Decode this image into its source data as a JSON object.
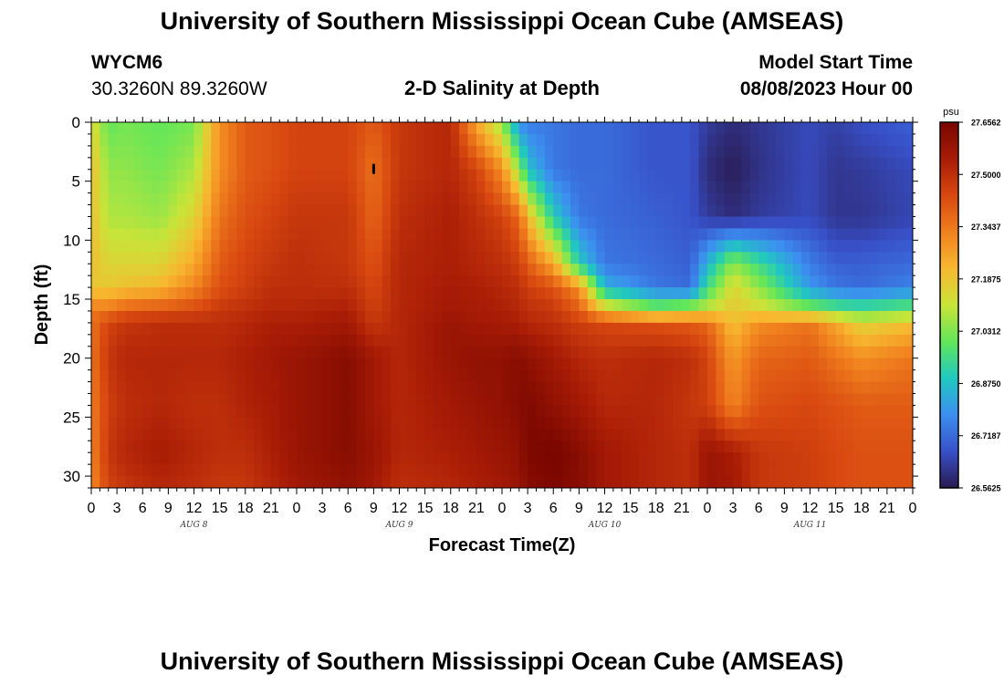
{
  "page": {
    "title": "University of Southern Mississippi Ocean Cube (AMSEAS)",
    "station_id": "WYCM6",
    "coords": "30.3260N  89.3260W",
    "plot_title": "2-D Salinity at Depth",
    "model_start_label": "Model Start Time",
    "model_start_value": "08/08/2023 Hour 00",
    "footer_title": "University of Southern Mississippi Ocean Cube (AMSEAS)"
  },
  "colors": {
    "ramp": [
      "#2a1a50",
      "#3850c8",
      "#3c8ef0",
      "#20c8c0",
      "#62e65a",
      "#c9e438",
      "#f8b830",
      "#f0801e",
      "#d84810",
      "#a81c06",
      "#780600"
    ]
  },
  "chart_data": {
    "type": "heatmap",
    "title": "2-D Salinity at Depth",
    "xlabel": "Forecast Time(Z)",
    "ylabel": "Depth (ft)",
    "x_range_hours": [
      0,
      96
    ],
    "y_range_ft": [
      0,
      31
    ],
    "y_ticks": [
      "0",
      "5",
      "10",
      "15",
      "20",
      "25",
      "30"
    ],
    "x_tick_labels": [
      "0",
      "3",
      "6",
      "9",
      "12",
      "15",
      "18",
      "21",
      "0",
      "3",
      "6",
      "9",
      "12",
      "15",
      "18",
      "21",
      "0",
      "3",
      "6",
      "9",
      "12",
      "15",
      "18",
      "21",
      "0",
      "3",
      "6",
      "9",
      "12",
      "15",
      "18",
      "21",
      "0"
    ],
    "day_labels": [
      "AUG 8",
      "AUG 9",
      "AUG 10",
      "AUG 11"
    ],
    "colorbar": {
      "unit": "psu",
      "min": 26.5625,
      "max": 27.6562,
      "tick_labels": [
        "27.6562",
        "27.5000",
        "27.3437",
        "27.1875",
        "27.0312",
        "26.8750",
        "26.7187",
        "26.5625"
      ]
    },
    "grid_depths_ft": [
      0,
      4,
      8,
      12,
      14,
      16,
      17,
      20,
      24,
      28,
      31
    ],
    "grid_hours": [
      0,
      2,
      4,
      8,
      12,
      15,
      18,
      21,
      24,
      30,
      33,
      36,
      42,
      45,
      48,
      50,
      51,
      54,
      57,
      60,
      66,
      70,
      72,
      75,
      78,
      84,
      87,
      90,
      96
    ],
    "values_rows": [
      [
        27.15,
        27.0,
        27.02,
        27.0,
        27.02,
        27.3,
        27.4,
        27.42,
        27.45,
        27.45,
        27.4,
        27.48,
        27.52,
        27.25,
        27.05,
        26.78,
        26.75,
        26.74,
        26.72,
        26.72,
        26.68,
        26.68,
        26.63,
        26.6,
        26.62,
        26.66,
        26.64,
        26.67,
        26.7
      ],
      [
        27.2,
        27.05,
        27.05,
        27.02,
        27.08,
        27.3,
        27.4,
        27.42,
        27.45,
        27.45,
        27.36,
        27.48,
        27.52,
        27.45,
        27.3,
        27.05,
        26.88,
        26.74,
        26.72,
        26.72,
        26.68,
        26.68,
        26.6,
        26.57,
        26.61,
        26.66,
        26.62,
        26.63,
        26.66
      ],
      [
        27.2,
        27.08,
        27.08,
        27.06,
        27.15,
        27.35,
        27.42,
        27.45,
        27.48,
        27.48,
        27.38,
        27.5,
        27.54,
        27.5,
        27.45,
        27.38,
        27.22,
        26.9,
        26.74,
        26.72,
        26.7,
        26.68,
        26.63,
        26.6,
        26.63,
        26.66,
        26.62,
        26.62,
        26.65
      ],
      [
        27.2,
        27.15,
        27.15,
        27.15,
        27.25,
        27.4,
        27.45,
        27.48,
        27.5,
        27.48,
        27.42,
        27.52,
        27.54,
        27.52,
        27.5,
        27.46,
        27.4,
        27.25,
        26.9,
        26.74,
        26.72,
        26.7,
        26.85,
        27.05,
        26.95,
        26.75,
        26.7,
        26.7,
        26.72
      ],
      [
        27.18,
        27.18,
        27.2,
        27.22,
        27.32,
        27.42,
        27.46,
        27.5,
        27.5,
        27.5,
        27.44,
        27.52,
        27.55,
        27.54,
        27.52,
        27.5,
        27.46,
        27.42,
        27.3,
        26.85,
        26.74,
        26.72,
        26.95,
        27.15,
        27.05,
        26.8,
        26.74,
        26.72,
        26.76
      ],
      [
        27.35,
        27.35,
        27.4,
        27.42,
        27.44,
        27.48,
        27.5,
        27.52,
        27.52,
        27.54,
        27.46,
        27.52,
        27.56,
        27.55,
        27.54,
        27.52,
        27.5,
        27.48,
        27.4,
        27.2,
        27.05,
        27.1,
        27.12,
        27.18,
        27.15,
        27.05,
        27.0,
        26.98,
        27.02
      ],
      [
        27.35,
        27.45,
        27.48,
        27.5,
        27.5,
        27.5,
        27.52,
        27.54,
        27.54,
        27.56,
        27.48,
        27.52,
        27.58,
        27.56,
        27.55,
        27.54,
        27.52,
        27.5,
        27.46,
        27.44,
        27.42,
        27.4,
        27.38,
        27.2,
        27.3,
        27.35,
        27.25,
        27.15,
        27.2
      ],
      [
        27.35,
        27.48,
        27.52,
        27.52,
        27.52,
        27.52,
        27.54,
        27.56,
        27.58,
        27.62,
        27.56,
        27.52,
        27.58,
        27.6,
        27.6,
        27.62,
        27.6,
        27.56,
        27.52,
        27.5,
        27.52,
        27.5,
        27.45,
        27.28,
        27.38,
        27.4,
        27.35,
        27.3,
        27.35
      ],
      [
        27.33,
        27.46,
        27.5,
        27.52,
        27.5,
        27.5,
        27.53,
        27.55,
        27.58,
        27.62,
        27.56,
        27.52,
        27.56,
        27.58,
        27.6,
        27.62,
        27.64,
        27.6,
        27.56,
        27.52,
        27.52,
        27.48,
        27.46,
        27.32,
        27.42,
        27.44,
        27.42,
        27.4,
        27.4
      ],
      [
        27.32,
        27.48,
        27.52,
        27.55,
        27.52,
        27.5,
        27.5,
        27.54,
        27.58,
        27.62,
        27.58,
        27.52,
        27.54,
        27.56,
        27.58,
        27.6,
        27.64,
        27.66,
        27.62,
        27.56,
        27.52,
        27.5,
        27.58,
        27.55,
        27.48,
        27.46,
        27.44,
        27.42,
        27.42
      ],
      [
        27.3,
        27.45,
        27.48,
        27.52,
        27.5,
        27.48,
        27.48,
        27.52,
        27.56,
        27.6,
        27.56,
        27.5,
        27.52,
        27.54,
        27.56,
        27.58,
        27.62,
        27.64,
        27.62,
        27.56,
        27.52,
        27.5,
        27.58,
        27.56,
        27.48,
        27.46,
        27.44,
        27.42,
        27.42
      ]
    ],
    "annotation": {
      "label": "I",
      "hour": 33,
      "depth_ft": 4
    }
  }
}
